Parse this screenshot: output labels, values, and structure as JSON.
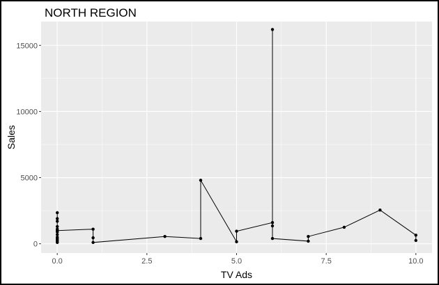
{
  "chart_data": {
    "type": "line",
    "title": "NORTH REGION",
    "xlabel": "TV Ads",
    "ylabel": "Sales",
    "xlim": [
      -0.45,
      10.45
    ],
    "ylim": [
      -700,
      16800
    ],
    "xticks": [
      0,
      2.5,
      5,
      7.5,
      10
    ],
    "xtick_labels": [
      "0.0",
      "2.5",
      "5.0",
      "7.5",
      "10.0"
    ],
    "yticks": [
      0,
      5000,
      10000,
      15000
    ],
    "ytick_labels": [
      "0",
      "5000",
      "10000",
      "15000"
    ],
    "grid": true,
    "panel_background": "#ebebeb",
    "grid_color": "#ffffff",
    "line_color": "#000000",
    "points": [
      {
        "x": 0,
        "y": 100
      },
      {
        "x": 0,
        "y": 200
      },
      {
        "x": 0,
        "y": 300
      },
      {
        "x": 0,
        "y": 400
      },
      {
        "x": 0,
        "y": 500
      },
      {
        "x": 0,
        "y": 700
      },
      {
        "x": 0,
        "y": 900
      },
      {
        "x": 0,
        "y": 1100
      },
      {
        "x": 0,
        "y": 1300
      },
      {
        "x": 0,
        "y": 1700
      },
      {
        "x": 0,
        "y": 1900
      },
      {
        "x": 0,
        "y": 2350
      },
      {
        "x": 0,
        "y": 1000
      },
      {
        "x": 1,
        "y": 1100
      },
      {
        "x": 1,
        "y": 450
      },
      {
        "x": 1,
        "y": 100
      },
      {
        "x": 3,
        "y": 550
      },
      {
        "x": 4,
        "y": 400
      },
      {
        "x": 4,
        "y": 4800
      },
      {
        "x": 5,
        "y": 150
      },
      {
        "x": 5,
        "y": 950
      },
      {
        "x": 6,
        "y": 1600
      },
      {
        "x": 6,
        "y": 16200
      },
      {
        "x": 6,
        "y": 1350
      },
      {
        "x": 6,
        "y": 400
      },
      {
        "x": 7,
        "y": 200
      },
      {
        "x": 7,
        "y": 550
      },
      {
        "x": 8,
        "y": 1250
      },
      {
        "x": 9,
        "y": 2550
      },
      {
        "x": 10,
        "y": 650
      },
      {
        "x": 10,
        "y": 250
      }
    ]
  }
}
